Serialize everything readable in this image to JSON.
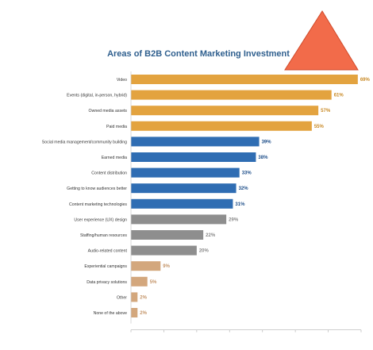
{
  "chart_data": {
    "type": "bar",
    "orientation": "horizontal",
    "title": "Areas of B2B Content Marketing Investment",
    "categories": [
      "Video",
      "Events (digital, in-person, hybrid)",
      "Owned media assets",
      "Paid media",
      "Social media management/community building",
      "Earned media",
      "Content distribution",
      "Getting to know audiences better",
      "Content marketing technologies",
      "User experience (UX) design",
      "Staffing/human resources",
      "Audio-related content",
      "Experiential campaigns",
      "Data privacy solutions",
      "Other",
      "None of the above"
    ],
    "values": [
      69,
      61,
      57,
      55,
      39,
      38,
      33,
      32,
      31,
      29,
      22,
      20,
      9,
      5,
      2,
      2
    ],
    "value_labels": [
      "69%",
      "61%",
      "57%",
      "55%",
      "39%",
      "38%",
      "33%",
      "32%",
      "31%",
      "29%",
      "22%",
      "20%",
      "9%",
      "5%",
      "2%",
      "2%"
    ],
    "xlim": [
      0,
      70
    ],
    "bar_colors": [
      "#e3a33f",
      "#e3a33f",
      "#e3a33f",
      "#e3a33f",
      "#2f6db3",
      "#2f6db3",
      "#2f6db3",
      "#2f6db3",
      "#2f6db3",
      "#8e8e8e",
      "#8e8e8e",
      "#8e8e8e",
      "#d3a77d",
      "#d3a77d",
      "#d3a77d",
      "#d3a77d"
    ],
    "label_colors": [
      "#c98a26",
      "#c98a26",
      "#c98a26",
      "#c98a26",
      "#1f4f8a",
      "#1f4f8a",
      "#1f4f8a",
      "#1f4f8a",
      "#1f4f8a",
      "#8a8a8a",
      "#8a8a8a",
      "#8a8a8a",
      "#c49468",
      "#c49468",
      "#c49468",
      "#c49468"
    ],
    "grid": false
  },
  "overlay": {
    "shape": "triangle",
    "color": "#f26b4a"
  }
}
